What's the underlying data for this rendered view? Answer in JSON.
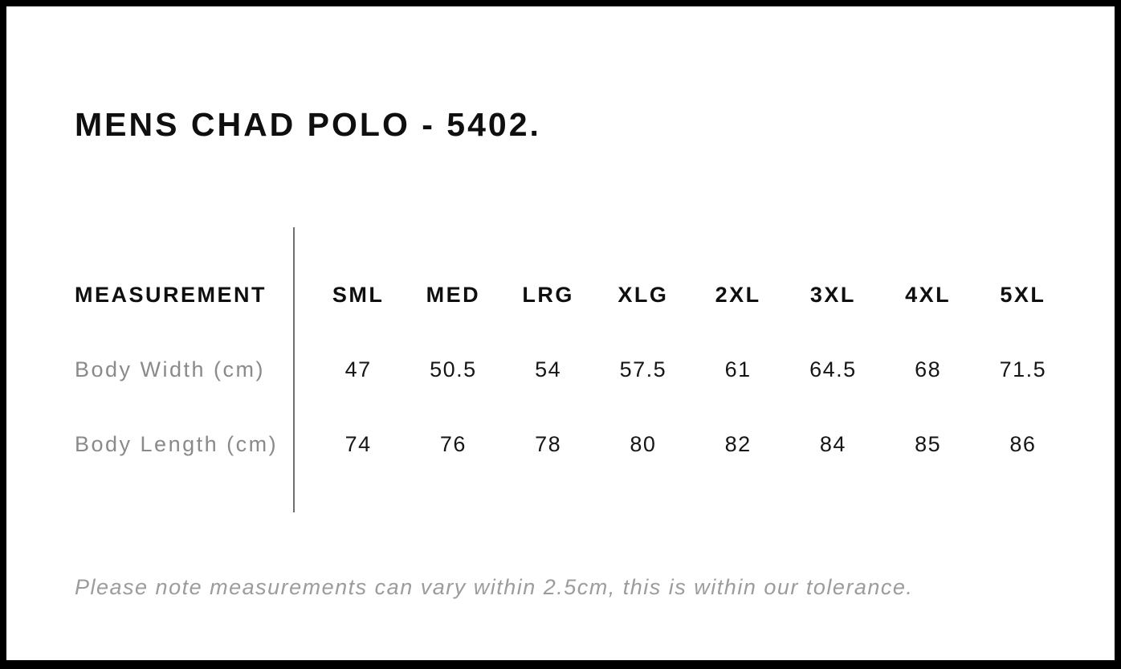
{
  "page": {
    "title": "MENS CHAD POLO - 5402.",
    "note": "Please note measurements can vary within 2.5cm, this is within our tolerance."
  },
  "chart_data": {
    "type": "table",
    "title": "MENS CHAD POLO - 5402.",
    "columns": [
      "MEASUREMENT",
      "SML",
      "MED",
      "LRG",
      "XLG",
      "2XL",
      "3XL",
      "4XL",
      "5XL"
    ],
    "rows": [
      [
        "Body Width (cm)",
        "47",
        "50.5",
        "54",
        "57.5",
        "61",
        "64.5",
        "68",
        "71.5"
      ],
      [
        "Body Length (cm)",
        "74",
        "76",
        "78",
        "80",
        "82",
        "84",
        "85",
        "86"
      ]
    ],
    "footnote": "Please note measurements can vary within 2.5cm, this is within our tolerance.",
    "layout": {
      "divider": "vertical line between measurement column and size columns",
      "grid": "off"
    }
  },
  "colors": {
    "frame": "#000000",
    "background": "#ffffff",
    "heading_text": "#0f0f0f",
    "value_text": "#161616",
    "row_label_text": "#8a8a8a",
    "note_text": "#9c9c9c",
    "divider": "#6f6f6f"
  }
}
